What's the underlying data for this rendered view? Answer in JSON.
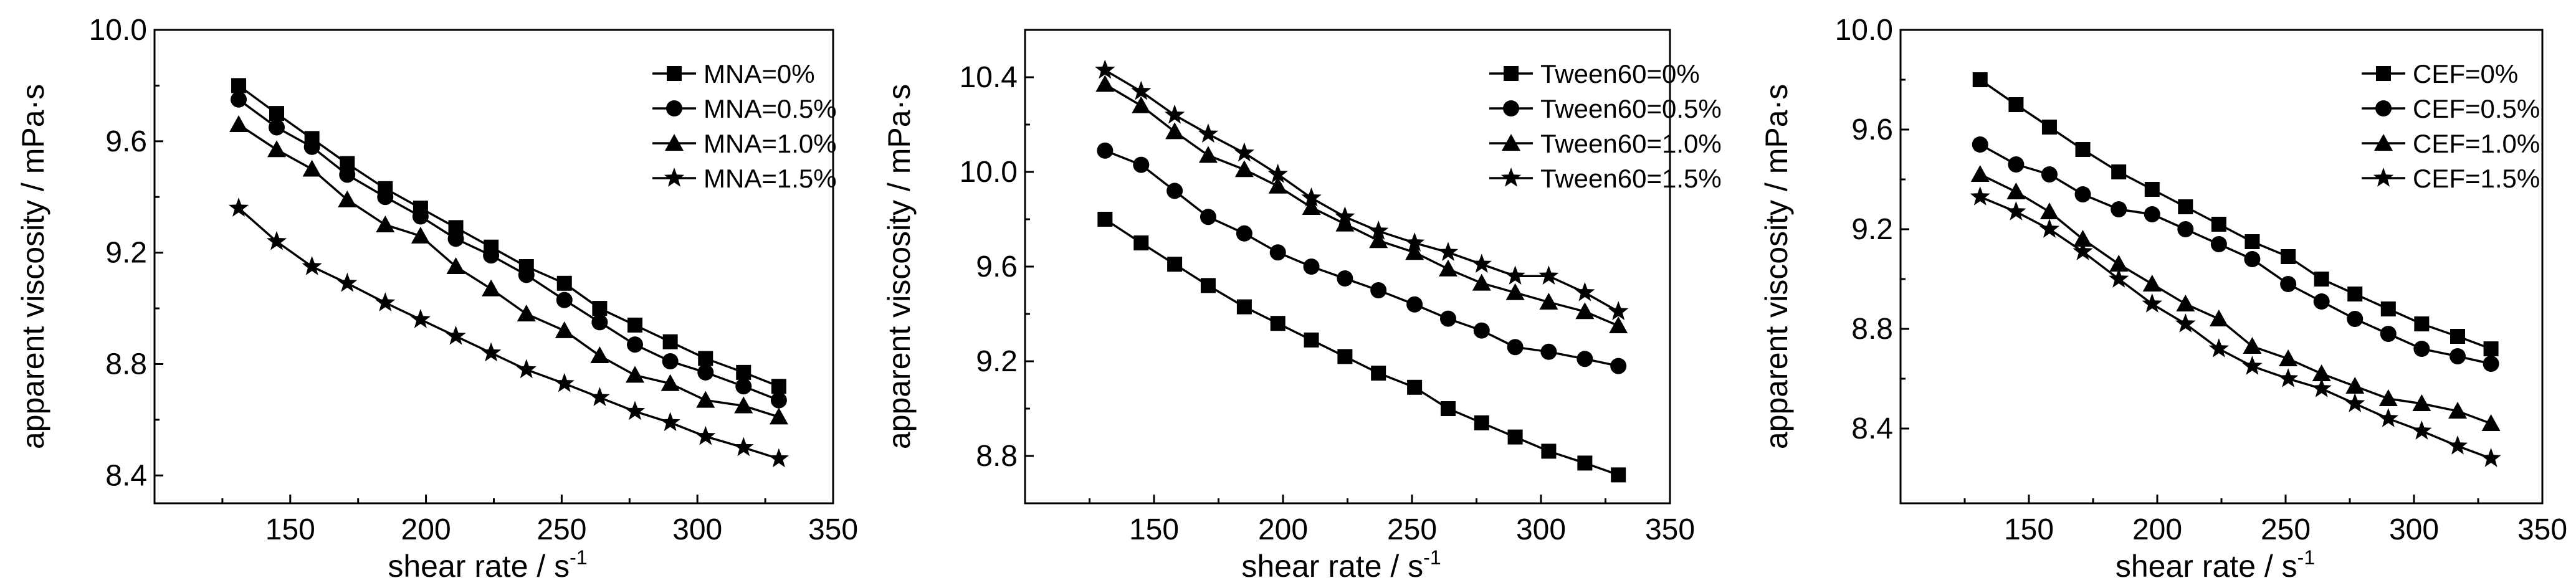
{
  "chart_data": [
    {
      "type": "line",
      "title": "",
      "xlabel": "shear rate / s",
      "xlabel_sup": "-1",
      "ylabel": "apparent viscosity / mPa·s",
      "xlim": [
        100,
        350
      ],
      "ylim": [
        8.3,
        10.0
      ],
      "xticks": [
        "150",
        "200",
        "250",
        "300",
        "350"
      ],
      "yticks": [
        "8.4",
        "8.8",
        "9.2",
        "9.6",
        "10.0"
      ],
      "legend_position": "top-right",
      "x": [
        131,
        145,
        158,
        171,
        185,
        198,
        211,
        224,
        237,
        251,
        264,
        277,
        290,
        303,
        317,
        330
      ],
      "series": [
        {
          "name": "MNA=0%",
          "marker": "square",
          "values": [
            9.8,
            9.7,
            9.61,
            9.52,
            9.43,
            9.36,
            9.29,
            9.22,
            9.15,
            9.09,
            9.0,
            8.94,
            8.88,
            8.82,
            8.77,
            8.72
          ]
        },
        {
          "name": "MNA=0.5%",
          "marker": "circle",
          "values": [
            9.75,
            9.65,
            9.58,
            9.48,
            9.4,
            9.33,
            9.25,
            9.19,
            9.12,
            9.03,
            8.95,
            8.87,
            8.81,
            8.77,
            8.72,
            8.67
          ]
        },
        {
          "name": "MNA=1.0%",
          "marker": "triangle",
          "values": [
            9.66,
            9.57,
            9.5,
            9.39,
            9.3,
            9.26,
            9.15,
            9.07,
            8.98,
            8.92,
            8.83,
            8.76,
            8.73,
            8.67,
            8.65,
            8.61
          ]
        },
        {
          "name": "MNA=1.5%",
          "marker": "star",
          "values": [
            9.36,
            9.24,
            9.15,
            9.09,
            9.02,
            8.96,
            8.9,
            8.84,
            8.78,
            8.73,
            8.68,
            8.63,
            8.59,
            8.54,
            8.5,
            8.46
          ]
        }
      ]
    },
    {
      "type": "line",
      "title": "",
      "xlabel": "shear rate / s",
      "xlabel_sup": "-1",
      "ylabel": "apparent viscosity / mPa·s",
      "xlim": [
        100,
        350
      ],
      "ylim": [
        8.6,
        10.6
      ],
      "xticks": [
        "150",
        "200",
        "250",
        "300",
        "350"
      ],
      "yticks": [
        "8.8",
        "9.2",
        "9.6",
        "10.0",
        "10.4"
      ],
      "legend_position": "top-right",
      "x": [
        131,
        145,
        158,
        171,
        185,
        198,
        211,
        224,
        237,
        251,
        264,
        277,
        290,
        303,
        317,
        330
      ],
      "series": [
        {
          "name": "Tween60=0%",
          "marker": "square",
          "values": [
            9.8,
            9.7,
            9.61,
            9.52,
            9.43,
            9.36,
            9.29,
            9.22,
            9.15,
            9.09,
            9.0,
            8.94,
            8.88,
            8.82,
            8.77,
            8.72
          ]
        },
        {
          "name": "Tween60=0.5%",
          "marker": "circle",
          "values": [
            10.09,
            10.03,
            9.92,
            9.81,
            9.74,
            9.66,
            9.6,
            9.55,
            9.5,
            9.44,
            9.38,
            9.33,
            9.26,
            9.24,
            9.21,
            9.18
          ]
        },
        {
          "name": "Tween60=1.0%",
          "marker": "triangle",
          "values": [
            10.37,
            10.28,
            10.17,
            10.07,
            10.01,
            9.94,
            9.85,
            9.78,
            9.71,
            9.66,
            9.59,
            9.53,
            9.49,
            9.45,
            9.41,
            9.35
          ]
        },
        {
          "name": "Tween60=1.5%",
          "marker": "star",
          "values": [
            10.43,
            10.34,
            10.24,
            10.16,
            10.08,
            9.99,
            9.89,
            9.81,
            9.75,
            9.7,
            9.66,
            9.61,
            9.56,
            9.56,
            9.49,
            9.41
          ]
        }
      ]
    },
    {
      "type": "line",
      "title": "",
      "xlabel": "shear rate / s",
      "xlabel_sup": "-1",
      "ylabel": "apparent viscosity / mPa·s",
      "xlim": [
        100,
        350
      ],
      "ylim": [
        8.1,
        10.0
      ],
      "xticks": [
        "150",
        "200",
        "250",
        "300",
        "350"
      ],
      "yticks": [
        "8.4",
        "8.8",
        "9.2",
        "9.6",
        "10.0"
      ],
      "legend_position": "top-right",
      "x": [
        131,
        145,
        158,
        171,
        185,
        198,
        211,
        224,
        237,
        251,
        264,
        277,
        290,
        303,
        317,
        330
      ],
      "series": [
        {
          "name": "CEF=0%",
          "marker": "square",
          "values": [
            9.8,
            9.7,
            9.61,
            9.52,
            9.43,
            9.36,
            9.29,
            9.22,
            9.15,
            9.09,
            9.0,
            8.94,
            8.88,
            8.82,
            8.77,
            8.72
          ]
        },
        {
          "name": "CEF=0.5%",
          "marker": "circle",
          "values": [
            9.54,
            9.46,
            9.42,
            9.34,
            9.28,
            9.26,
            9.2,
            9.14,
            9.08,
            8.98,
            8.91,
            8.84,
            8.78,
            8.72,
            8.69,
            8.66
          ]
        },
        {
          "name": "CEF=1.0%",
          "marker": "triangle",
          "values": [
            9.42,
            9.35,
            9.27,
            9.16,
            9.06,
            8.98,
            8.9,
            8.84,
            8.73,
            8.68,
            8.62,
            8.57,
            8.52,
            8.5,
            8.47,
            8.42
          ]
        },
        {
          "name": "CEF=1.5%",
          "marker": "star",
          "values": [
            9.33,
            9.27,
            9.2,
            9.11,
            9.0,
            8.9,
            8.82,
            8.72,
            8.65,
            8.6,
            8.56,
            8.5,
            8.44,
            8.39,
            8.33,
            8.28
          ]
        }
      ]
    }
  ]
}
